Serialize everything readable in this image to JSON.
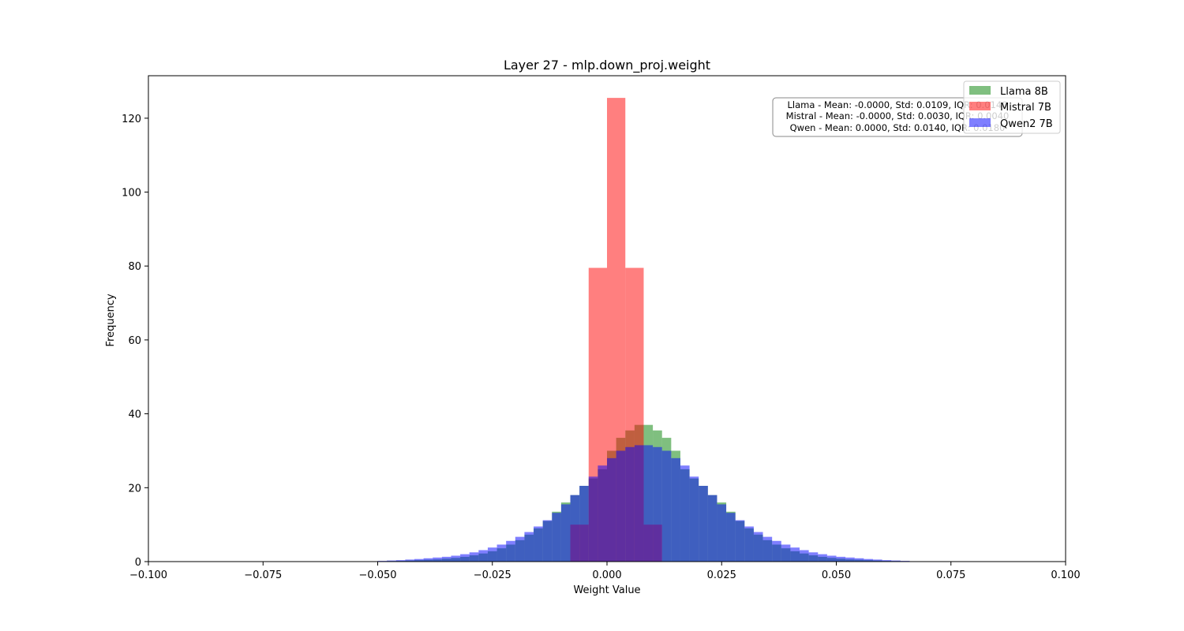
{
  "chart_data": {
    "type": "histogram",
    "title": "Layer 27 - mlp.down_proj.weight",
    "xlabel": "Weight Value",
    "ylabel": "Frequency",
    "xlim": [
      -0.1,
      0.1
    ],
    "ylim": [
      0,
      131.5
    ],
    "grid": false,
    "legend_position": "top-right",
    "x_ticks": [
      -0.1,
      -0.075,
      -0.05,
      -0.025,
      0,
      0.025,
      0.05,
      0.075,
      0.1
    ],
    "x_tick_labels": [
      "−0.100",
      "−0.075",
      "−0.050",
      "−0.025",
      "0.000",
      "0.025",
      "0.050",
      "0.075",
      "0.100"
    ],
    "y_ticks": [
      0,
      20,
      40,
      60,
      80,
      100,
      120
    ],
    "y_tick_labels": [
      "0",
      "20",
      "40",
      "60",
      "80",
      "100",
      "120"
    ],
    "series": [
      {
        "name": "Llama 8B",
        "color": "#008000",
        "alpha": 0.5,
        "bin_width": 0.002,
        "bin_start": -0.05,
        "values": [
          0.1,
          0.15,
          0.2,
          0.3,
          0.4,
          0.5,
          0.6,
          0.8,
          1.0,
          1.3,
          1.7,
          2.2,
          2.8,
          3.6,
          4.6,
          5.8,
          7.3,
          9.0,
          11.0,
          13.5,
          16.0,
          18.0,
          20.5,
          22.5,
          25.0,
          30.0,
          33.5,
          35.5,
          37.0,
          37.0,
          35.5,
          33.5,
          30.0,
          25.0,
          22.5,
          20.5,
          18.0,
          16.0,
          13.5,
          11.0,
          9.0,
          7.3,
          5.8,
          4.6,
          3.6,
          2.8,
          2.2,
          1.7,
          1.3,
          1.0,
          0.8,
          0.6,
          0.5,
          0.4,
          0.3,
          0.2,
          0.15,
          0.1
        ]
      },
      {
        "name": "Mistral 7B",
        "color": "#ff0000",
        "alpha": 0.5,
        "bin_edges": [
          -0.012,
          -0.008,
          -0.004,
          0.0,
          0.004,
          0.008,
          0.012
        ],
        "values": [
          0.1,
          10.0,
          79.5,
          125.5,
          79.5,
          10.0
        ]
      },
      {
        "name": "Qwen2 7B",
        "color": "#0000ff",
        "alpha": 0.5,
        "bin_width": 0.002,
        "bin_start": -0.05,
        "values": [
          0.2,
          0.3,
          0.4,
          0.55,
          0.7,
          0.9,
          1.1,
          1.3,
          1.6,
          2.0,
          2.5,
          3.1,
          3.8,
          4.6,
          5.6,
          6.7,
          8.0,
          9.5,
          11.2,
          13.2,
          15.5,
          18.0,
          20.5,
          23.0,
          26.0,
          28.0,
          30.0,
          31.0,
          31.5,
          31.5,
          31.0,
          30.0,
          28.0,
          26.0,
          23.0,
          20.5,
          18.0,
          15.5,
          13.2,
          11.2,
          9.5,
          8.0,
          6.7,
          5.6,
          4.6,
          3.8,
          3.1,
          2.5,
          2.0,
          1.6,
          1.3,
          1.1,
          0.9,
          0.7,
          0.55,
          0.4,
          0.3,
          0.2
        ]
      }
    ],
    "stats_box": [
      "Llama - Mean: -0.0000, Std: 0.0109, IQR: 0.0140",
      "Mistral - Mean: -0.0000, Std: 0.0030, IQR: 0.0040",
      "Qwen - Mean: 0.0000, Std: 0.0140, IQR: 0.0180"
    ]
  }
}
